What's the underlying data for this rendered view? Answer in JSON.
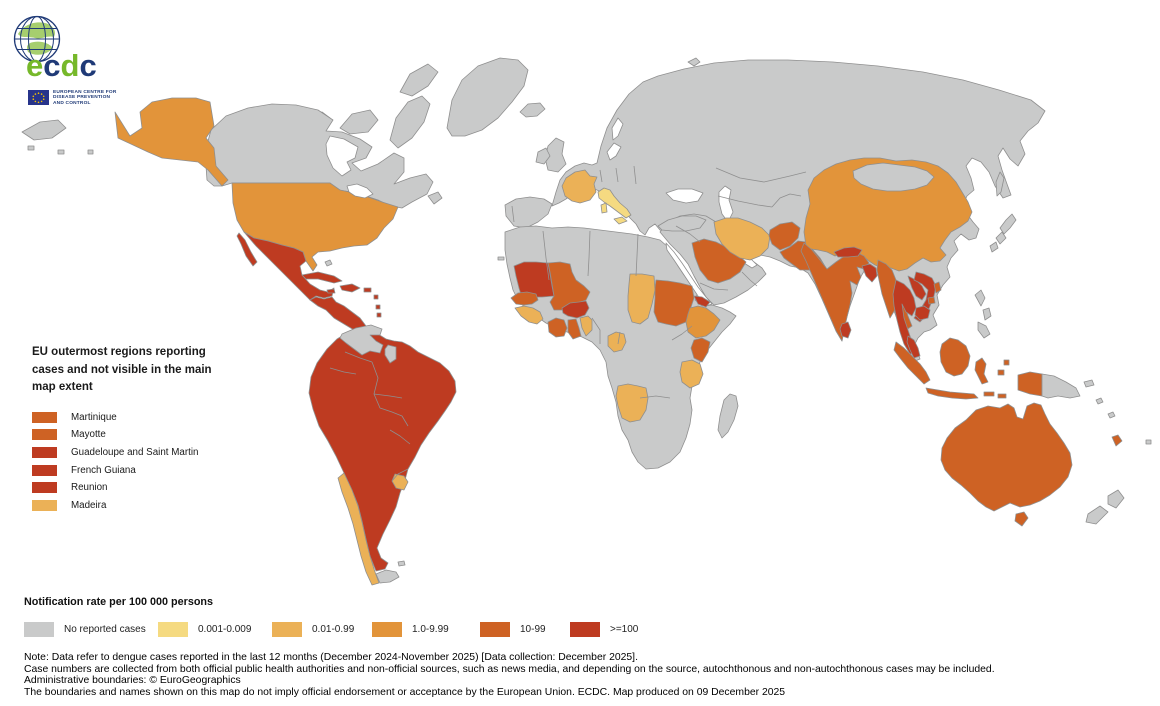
{
  "logo": {
    "letters": [
      {
        "ch": "e",
        "color": "logo_green"
      },
      {
        "ch": "c",
        "color": "logo_navy"
      },
      {
        "ch": "d",
        "color": "logo_green"
      },
      {
        "ch": "c",
        "color": "logo_navy"
      }
    ],
    "org_lines": [
      "EUROPEAN CENTRE FOR",
      "DISEASE PREVENTION",
      "AND CONTROL"
    ]
  },
  "outermost_legend": {
    "title": "EU outermost regions reporting cases and not visible in the main map extent",
    "items": [
      {
        "label": "Martinique",
        "category": "cat4"
      },
      {
        "label": "Mayotte",
        "category": "cat4"
      },
      {
        "label": "Guadeloupe and Saint Martin",
        "category": "cat5"
      },
      {
        "label": "French Guiana",
        "category": "cat5"
      },
      {
        "label": "Reunion",
        "category": "cat5"
      },
      {
        "label": "Madeira",
        "category": "cat2"
      }
    ]
  },
  "rate_legend": {
    "title": "Notification rate per 100 000 persons",
    "items": [
      {
        "label": "No reported cases",
        "category": "no_cases"
      },
      {
        "label": "0.001-0.009",
        "category": "cat1"
      },
      {
        "label": "0.01-0.99",
        "category": "cat2"
      },
      {
        "label": "1.0-9.99",
        "category": "cat3"
      },
      {
        "label": "10-99",
        "category": "cat4"
      },
      {
        "label": ">=100",
        "category": "cat5"
      }
    ]
  },
  "notes": {
    "line1": "Note: Data refer to dengue cases reported in the last 12 months (December 2024-November 2025) [Data collection: December 2025].",
    "line2": "Case numbers are collected from both official public health authorities and non-official sources, such as news media, and depending on the source, autochthonous and non-autochthonous cases may be included.",
    "line3": "Administrative boundaries: © EuroGeographics",
    "line4": "The boundaries and names shown on this map do not imply official endorsement or acceptance by the European Union. ECDC. Map produced on 09 December 2025"
  },
  "colors": {
    "no_cases": "#C9CACA",
    "cat1": "#F5DA81",
    "cat2": "#EBB157",
    "cat3": "#E2943A",
    "cat4": "#CE6224",
    "cat5": "#BE3B21",
    "border": "#8F8F8F",
    "ocean": "#FFFFFF",
    "logo_green": "#76B82A",
    "logo_navy": "#1F3A77"
  }
}
